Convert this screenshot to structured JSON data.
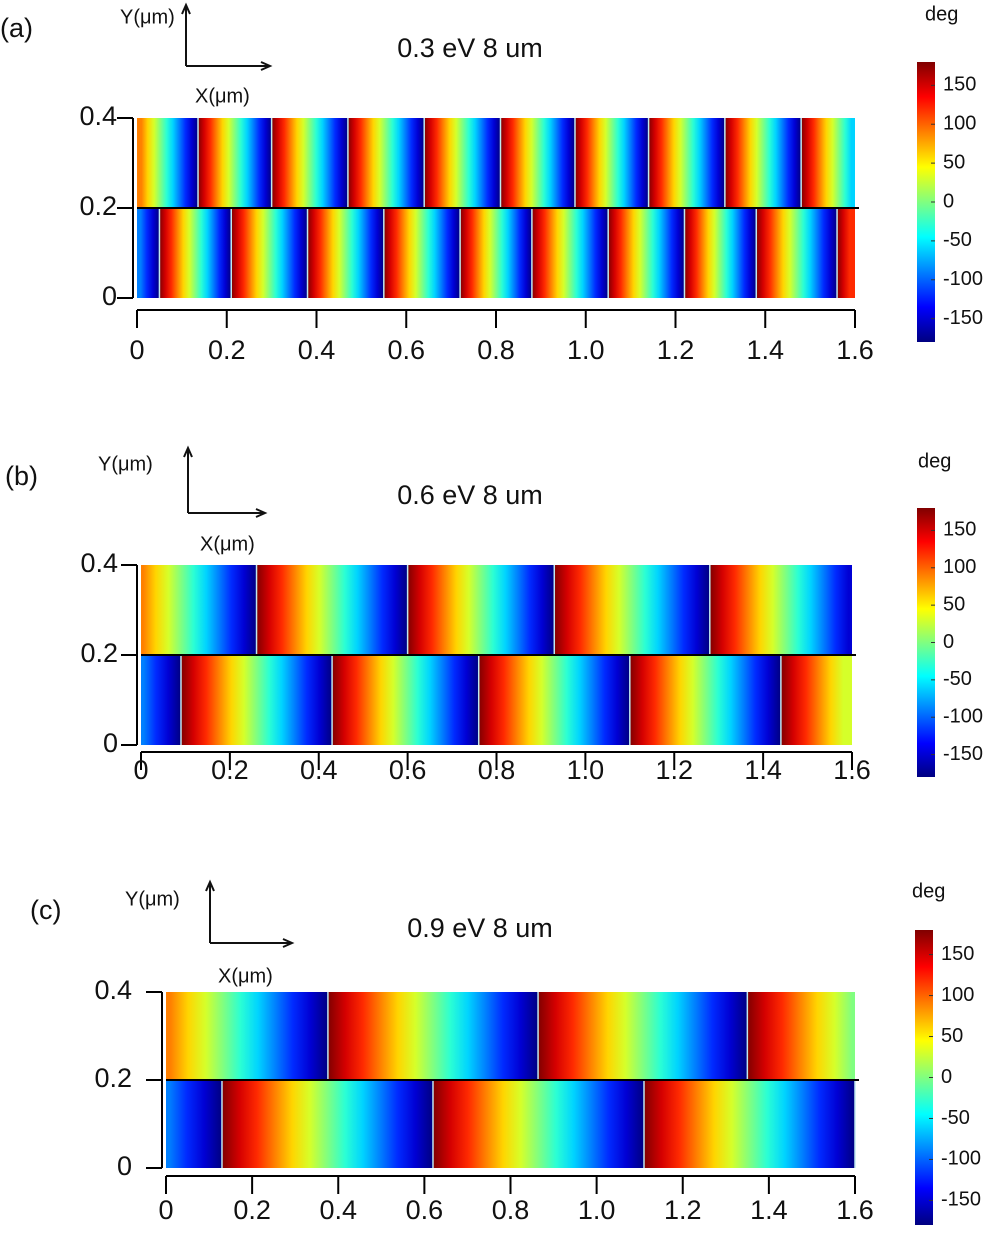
{
  "chart_data": [
    {
      "type": "heatmap",
      "panel_label": "(a)",
      "title": "0.3 eV  8 um",
      "x_label": "X(μm)",
      "y_label": "Y(μm)",
      "colorbar_label": "deg",
      "xlim": [
        0,
        1.6
      ],
      "xticks": [
        0,
        0.2,
        0.4,
        0.6,
        0.8,
        {
          "value": 1,
          "label": "1.0"
        },
        1.2,
        1.4,
        1.6
      ],
      "ylim": [
        0,
        0.4
      ],
      "yticks": [
        0,
        0.2,
        0.4
      ],
      "clim": [
        -180,
        180
      ],
      "cticks": [
        -150,
        -100,
        -50,
        0,
        50,
        100,
        150
      ],
      "rows": [
        {
          "y": [
            0.2,
            0.4
          ],
          "jumps": [
            0.136,
            0.3,
            0.47,
            0.64,
            0.81,
            0.976,
            1.14,
            1.31,
            1.48
          ]
        },
        {
          "y": [
            0,
            0.2
          ],
          "jumps": [
            0.05,
            0.21,
            0.38,
            0.55,
            0.72,
            0.88,
            1.05,
            1.22,
            1.38,
            1.56
          ]
        }
      ]
    },
    {
      "type": "heatmap",
      "panel_label": "(b)",
      "title": "0.6 eV  8 um",
      "x_label": "X(μm)",
      "y_label": "Y(μm)",
      "colorbar_label": "deg",
      "xlim": [
        0,
        1.6
      ],
      "xticks": [
        0,
        0.2,
        0.4,
        0.6,
        0.8,
        {
          "value": 1,
          "label": "1.0"
        },
        1.2,
        1.4,
        1.6
      ],
      "ylim": [
        0,
        0.4
      ],
      "yticks": [
        0,
        0.2,
        0.4
      ],
      "clim": [
        -180,
        180
      ],
      "cticks": [
        -150,
        -100,
        -50,
        0,
        50,
        100,
        150
      ],
      "rows": [
        {
          "y": [
            0.2,
            0.4
          ],
          "jumps": [
            0.26,
            0.6,
            0.93,
            1.28
          ]
        },
        {
          "y": [
            0,
            0.2
          ],
          "jumps": [
            0.09,
            0.43,
            0.76,
            1.1,
            1.44
          ]
        }
      ]
    },
    {
      "type": "heatmap",
      "panel_label": "(c)",
      "title": "0.9 eV  8 um",
      "x_label": "X(μm)",
      "y_label": "Y(μm)",
      "colorbar_label": "deg",
      "xlim": [
        0,
        1.6
      ],
      "xticks": [
        0,
        0.2,
        0.4,
        0.6,
        0.8,
        {
          "value": 1,
          "label": "1.0"
        },
        1.2,
        1.4,
        1.6
      ],
      "ylim": [
        0,
        0.4
      ],
      "yticks": [
        0,
        0.2,
        0.4
      ],
      "clim": [
        -180,
        180
      ],
      "cticks": [
        -150,
        -100,
        -50,
        0,
        50,
        100,
        150
      ],
      "rows": [
        {
          "y": [
            0.2,
            0.4
          ],
          "jumps": [
            0.376,
            0.864,
            1.35
          ]
        },
        {
          "y": [
            0,
            0.2
          ],
          "jumps": [
            0.13,
            0.62,
            1.11,
            1.6
          ]
        }
      ]
    }
  ]
}
